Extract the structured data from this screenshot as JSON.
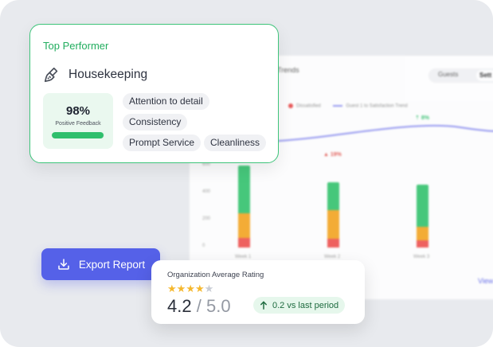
{
  "top_performer": {
    "title": "Top Performer",
    "department": "Housekeeping",
    "score": "98%",
    "score_label": "Positive Feedback",
    "score_fraction": 0.98,
    "tags": [
      "Attention to detail",
      "Consistency",
      "Prompt Service",
      "Cleanliness"
    ],
    "icon": "brush-icon"
  },
  "export": {
    "label": "Export Report",
    "icon": "download-icon"
  },
  "rating": {
    "title": "Organization Average Rating",
    "stars_filled": 4,
    "stars_total": 5,
    "value": "4.2",
    "separator": "/",
    "max": "5.0",
    "change": "0.2 vs last period"
  },
  "background_dashboard": {
    "title": "Trends",
    "toggle": [
      "Guests",
      "Sett"
    ],
    "legend": [
      "Dissatisfied",
      "Guest 1 to Satisfaction Trend"
    ],
    "change_up": "8%",
    "change_down": "19%",
    "y_ticks": [
      "600",
      "400",
      "200",
      "0"
    ],
    "x_ticks": [
      "Week 1",
      "Week 2",
      "Week 3"
    ],
    "link": "View"
  },
  "colors": {
    "accent": "#5561e8",
    "success": "#2fbf6c",
    "warning": "#f5a623",
    "danger": "#ef5350",
    "star": "#f5b82e"
  }
}
